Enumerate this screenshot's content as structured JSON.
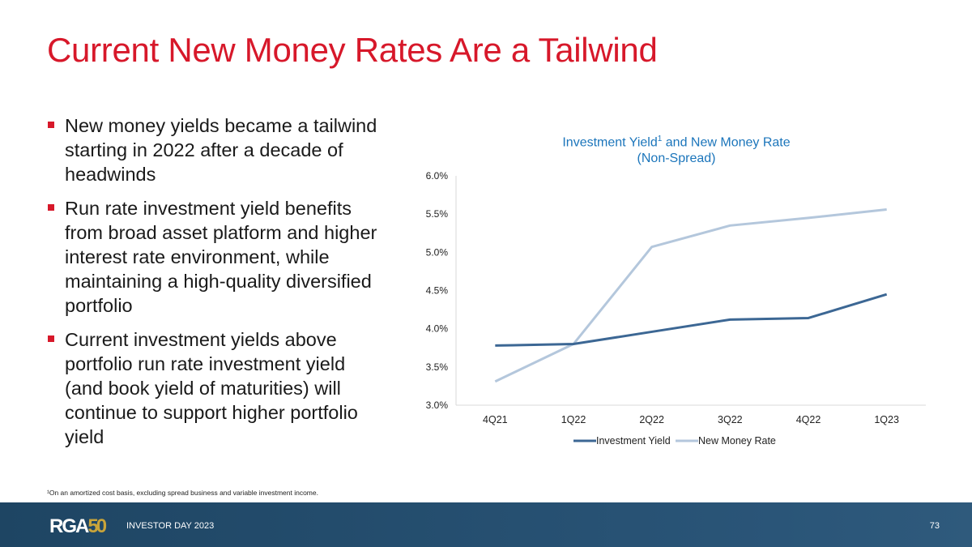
{
  "title": "Current New Money Rates Are a Tailwind",
  "bullets": [
    "New money yields became a tailwind starting in 2022 after a decade of headwinds",
    "Run rate investment yield benefits from broad asset platform and higher interest rate environment, while maintaining a high-quality diversified portfolio",
    "Current investment yields above portfolio run rate investment yield (and book yield of maturities) will continue to support higher portfolio yield"
  ],
  "chart_data": {
    "type": "line",
    "title_main": "Investment Yield",
    "title_sup": "1",
    "title_rest": " and New Money Rate",
    "subtitle": "(Non-Spread)",
    "categories": [
      "4Q21",
      "1Q22",
      "2Q22",
      "3Q22",
      "4Q22",
      "1Q23"
    ],
    "yticks": [
      "3.0%",
      "3.5%",
      "4.0%",
      "4.5%",
      "5.0%",
      "5.5%",
      "6.0%"
    ],
    "ylim": [
      3.0,
      6.0
    ],
    "series": [
      {
        "name": "Investment Yield",
        "color": "#3c6794",
        "values": [
          3.78,
          3.8,
          3.96,
          4.12,
          4.14,
          4.45
        ]
      },
      {
        "name": "New Money Rate",
        "color": "#b4c7dc",
        "values": [
          3.31,
          3.8,
          5.07,
          5.35,
          5.45,
          5.56
        ]
      }
    ],
    "legend": "bottom"
  },
  "footnote": "¹On an amortized cost basis, excluding spread business and variable investment income.",
  "footer": {
    "logo": "RGA",
    "logo_fifty": "50",
    "event": "INVESTOR DAY 2023",
    "page": "73"
  }
}
